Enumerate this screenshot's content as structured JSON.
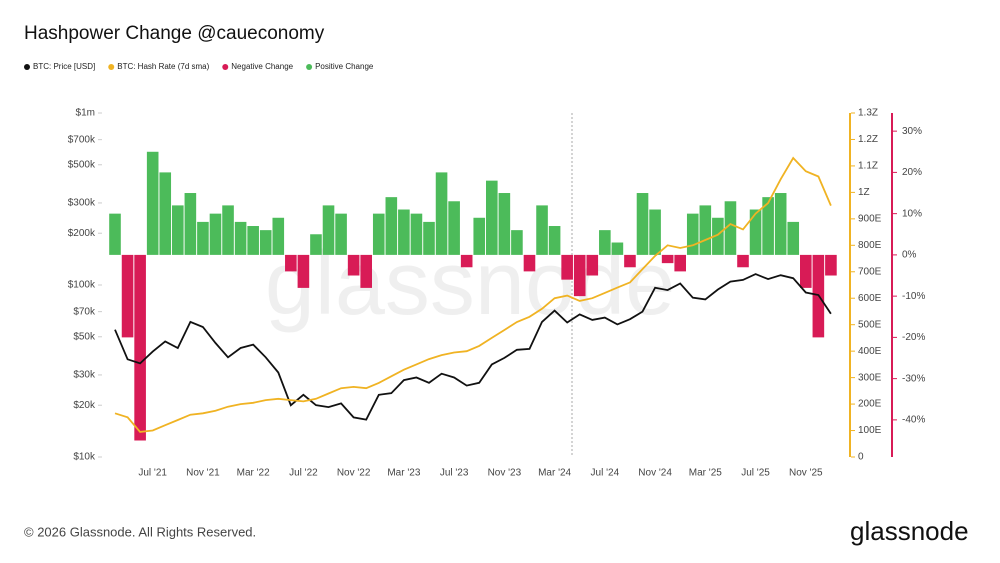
{
  "chart_data": {
    "type": "combo",
    "title": "Hashpower Change @caueconomy",
    "footer": "© 2026 Glassnode. All Rights Reserved.",
    "brand": "glassnode",
    "categories": [
      null,
      null,
      null,
      "Jul '21",
      null,
      null,
      null,
      "Nov '21",
      null,
      null,
      null,
      "Mar '22",
      null,
      null,
      null,
      "Jul '22",
      null,
      null,
      null,
      "Nov '22",
      null,
      null,
      null,
      "Mar '23",
      null,
      null,
      null,
      "Jul '23",
      null,
      null,
      null,
      "Nov '23",
      null,
      null,
      null,
      "Mar '24",
      null,
      null,
      null,
      "Jul '24",
      null,
      null,
      null,
      "Nov '24",
      null,
      null,
      null,
      "Mar '25",
      null,
      null,
      null,
      "Jul '25",
      null,
      null,
      null,
      "Nov '25",
      null,
      null
    ],
    "series": [
      {
        "name": "BTC: Price [USD]",
        "color": "#111111",
        "axis": "y",
        "values": [
          55000,
          37000,
          35000,
          41000,
          47000,
          43000,
          61000,
          57000,
          46000,
          38000,
          43000,
          45000,
          38000,
          31000,
          20000,
          23000,
          20000,
          19500,
          20500,
          17000,
          16500,
          23000,
          23500,
          28000,
          29000,
          27000,
          30500,
          29000,
          26000,
          27000,
          34500,
          37700,
          42000,
          42500,
          61000,
          71000,
          60500,
          67500,
          62700,
          64600,
          59000,
          63300,
          70000,
          96400,
          93400,
          102000,
          84400,
          82500,
          94200,
          104600,
          107000,
          115700,
          108200,
          114000,
          109500,
          90400,
          87500,
          68000
        ]
      },
      {
        "name": "BTC: Hash Rate (7d sma)",
        "color": "#f0b323",
        "axis": "y2",
        "values": [
          165,
          150,
          95,
          100,
          120,
          140,
          160,
          165,
          175,
          190,
          200,
          205,
          215,
          220,
          215,
          210,
          220,
          240,
          260,
          265,
          260,
          280,
          305,
          330,
          350,
          370,
          385,
          395,
          400,
          420,
          450,
          480,
          510,
          530,
          560,
          600,
          610,
          590,
          600,
          620,
          640,
          660,
          710,
          760,
          800,
          790,
          800,
          820,
          840,
          880,
          860,
          920,
          960,
          1050,
          1130,
          1080,
          1060,
          950
        ]
      },
      {
        "name": "Negative Change",
        "color": "#d81b56",
        "axis": "y3",
        "values": [
          null,
          -20,
          -45,
          null,
          null,
          null,
          null,
          null,
          null,
          null,
          null,
          null,
          null,
          null,
          -4,
          -8,
          null,
          null,
          null,
          -5,
          -8,
          null,
          null,
          null,
          null,
          null,
          null,
          null,
          -3,
          null,
          null,
          null,
          null,
          -4,
          null,
          null,
          -6,
          -10,
          -5,
          null,
          null,
          -3,
          null,
          null,
          -2,
          -4,
          null,
          null,
          null,
          null,
          -3,
          null,
          null,
          null,
          null,
          -8,
          -20,
          -5
        ]
      },
      {
        "name": "Positive Change",
        "color": "#4cbb5a",
        "axis": "y3",
        "values": [
          10,
          null,
          null,
          25,
          20,
          12,
          15,
          8,
          10,
          12,
          8,
          7,
          6,
          9,
          null,
          null,
          5,
          12,
          10,
          null,
          null,
          10,
          14,
          11,
          10,
          8,
          20,
          13,
          null,
          9,
          18,
          15,
          6,
          null,
          12,
          7,
          null,
          null,
          null,
          6,
          3,
          null,
          15,
          11,
          null,
          null,
          10,
          12,
          9,
          13,
          null,
          11,
          14,
          15,
          8,
          null,
          null,
          null
        ]
      }
    ],
    "ylim": [
      10000,
      1000000
    ],
    "log_y": true,
    "yticks": [
      {
        "value": 10000,
        "label": "$10k"
      },
      {
        "value": 20000,
        "label": "$20k"
      },
      {
        "value": 30000,
        "label": "$30k"
      },
      {
        "value": 50000,
        "label": "$50k"
      },
      {
        "value": 70000,
        "label": "$70k"
      },
      {
        "value": 100000,
        "label": "$100k"
      },
      {
        "value": 200000,
        "label": "$200k"
      },
      {
        "value": 300000,
        "label": "$300k"
      },
      {
        "value": 500000,
        "label": "$500k"
      },
      {
        "value": 700000,
        "label": "$700k"
      },
      {
        "value": 1000000,
        "label": "$1m"
      }
    ],
    "y2lim": [
      0,
      1300
    ],
    "y2ticks": [
      0,
      {
        "value": 100,
        "label": "100E"
      },
      {
        "value": 200,
        "label": "200E"
      },
      {
        "value": 300,
        "label": "300E"
      },
      {
        "value": 400,
        "label": "400E"
      },
      {
        "value": 500,
        "label": "500E"
      },
      {
        "value": 600,
        "label": "600E"
      },
      {
        "value": 700,
        "label": "700E"
      },
      {
        "value": 800,
        "label": "800E"
      },
      {
        "value": 900,
        "label": "900E"
      },
      {
        "value": 1000,
        "label": "1Z"
      },
      {
        "value": 1100,
        "label": "1.1Z"
      },
      {
        "value": 1200,
        "label": "1.2Z"
      },
      {
        "value": 1300,
        "label": "1.3Z"
      }
    ],
    "y3lim": [
      -49,
      34.4
    ],
    "y3ticks": [
      {
        "value": -40,
        "label": "-40%"
      },
      {
        "value": -30,
        "label": "-30%"
      },
      {
        "value": -20,
        "label": "-20%"
      },
      {
        "value": -10,
        "label": "-10%"
      },
      {
        "value": 0,
        "label": "0%"
      },
      {
        "value": 10,
        "label": "10%"
      },
      {
        "value": 20,
        "label": "20%"
      },
      {
        "value": 30,
        "label": "30%"
      }
    ]
  }
}
